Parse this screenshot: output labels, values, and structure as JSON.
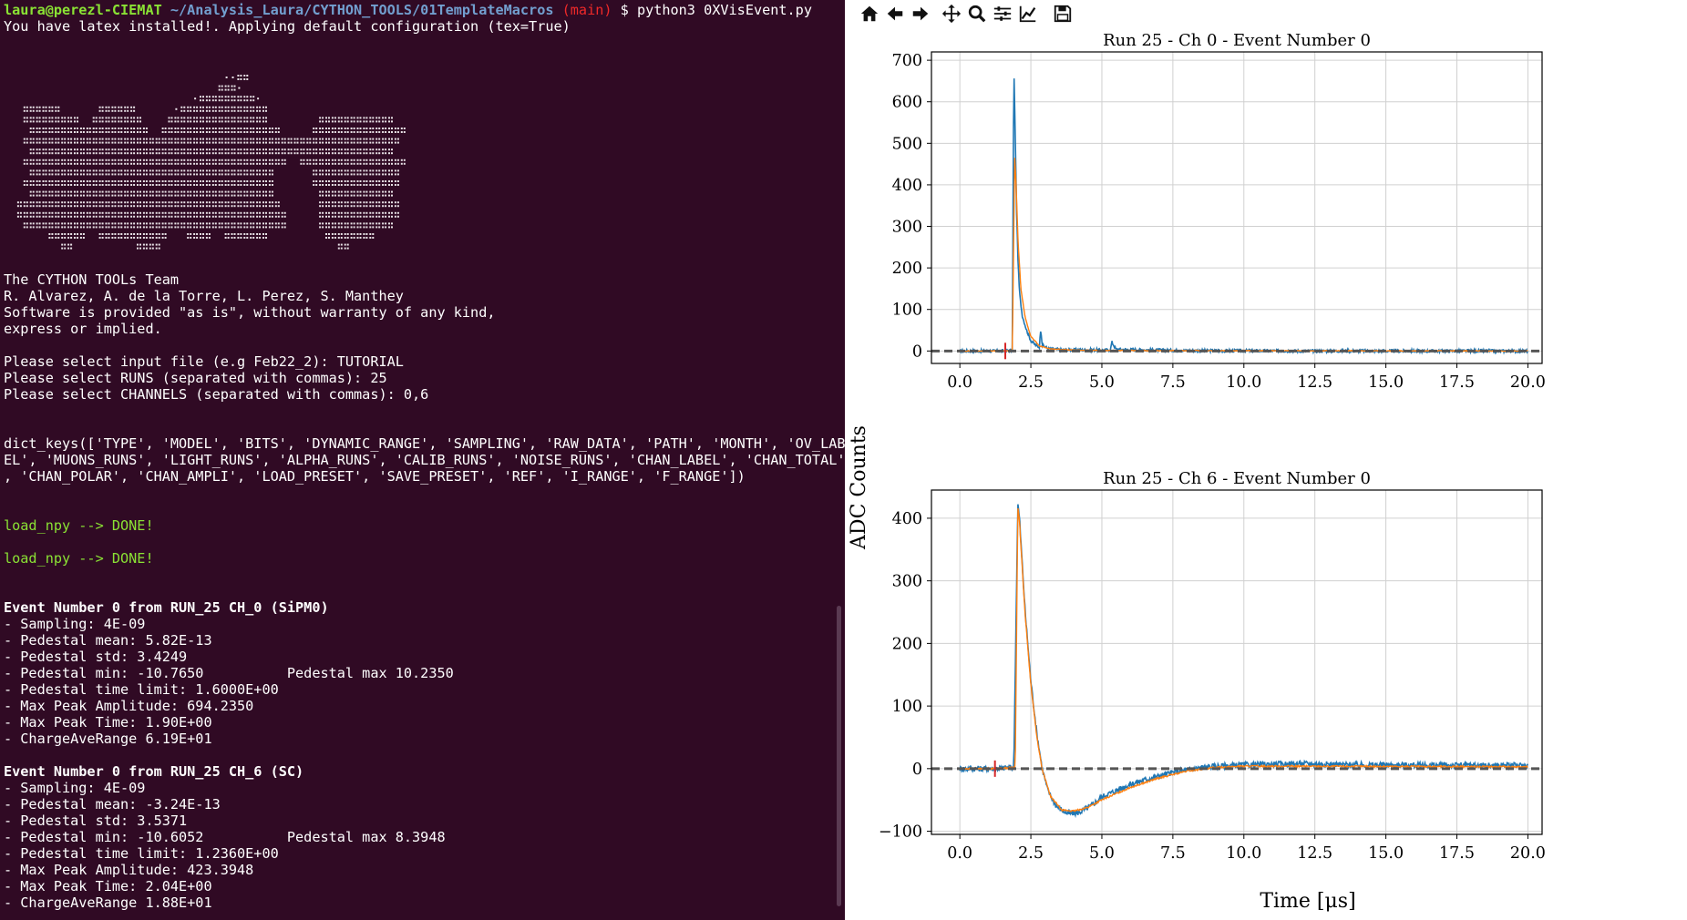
{
  "terminal": {
    "prompt": {
      "user": "laura@perezl-CIEMAT",
      "path": " ~/Analysis_Laura/CYTHON_TOOLS/01TemplateMacros",
      "branch": " (main)",
      "command": " $ python3 0XVisEvent.py"
    },
    "latex_msg": "You have latex installed!. Applying default configuration (tex=True)",
    "ascii_art": [
      "                                  ..::",
      "                                 :::'",
      "                             .:::::::::.",
      "  ::::::      ::::::      .::::::::::::::",
      "  :::::::::  ::::::::    ::::::::::::::::        ::::::::::::",
      "   :::::::::::::::::::  :::::::::::::::::::     :::::::::::::::",
      "  ::::::::::::::::::::::::::::::::::::::::::::::::::::::::::::",
      "   ::::::::::::::::::::::::::::::::::::::::::::::::::::::::::",
      "  ::::::::::::::::::::::::::::::::::::::::::  :::::::::::::::::",
      "   :::::::::::::::::::::::::::::::::::::::      ::::::::::::::",
      "  ::::::::::::::::::::::::::::::::::::::::      ::::::::::::::",
      "   :::::::::::::::::::::::::::::::::::::::       ::::::::::::",
      " ::::::::::::::::::::::::::::::::::::::::::      :::::::::::::",
      " :::::::::::::::::::::::::::::::::::::::::::     :::::::::::::",
      "  ::::::::::::::::::::::::::::::::::::::::::     ::::::::::::",
      "      ::::::  :::::::::::   ::::  :::::::         ::::::::",
      "        ::          ::::                            ::"
    ],
    "credits": [
      "The CYTHON TOOLs Team",
      "R. Alvarez, A. de la Torre, L. Perez, S. Manthey",
      "Software is provided \"as is\", without warranty of any kind,",
      "express or implied."
    ],
    "inputs": [
      "Please select input file (e.g Feb22_2): TUTORIAL",
      "Please select RUNS (separated with commas): 25",
      "Please select CHANNELS (separated with commas): 0,6"
    ],
    "dict_keys": [
      "dict_keys(['TYPE', 'MODEL', 'BITS', 'DYNAMIC_RANGE', 'SAMPLING', 'RAW_DATA', 'PATH', 'MONTH', 'OV_LAB",
      "EL', 'MUONS_RUNS', 'LIGHT_RUNS', 'ALPHA_RUNS', 'CALIB_RUNS', 'NOISE_RUNS', 'CHAN_LABEL', 'CHAN_TOTAL'",
      ", 'CHAN_POLAR', 'CHAN_AMPLI', 'LOAD_PRESET', 'SAVE_PRESET', 'REF', 'I_RANGE', 'F_RANGE'])"
    ],
    "load_msg": "load_npy --> DONE!",
    "events": [
      {
        "header": "Event Number 0 from RUN_25 CH_0 (SiPM0)",
        "lines": [
          "- Sampling: 4E-09",
          "- Pedestal mean: 5.82E-13",
          "- Pedestal std: 3.4249",
          "- Pedestal min: -10.7650          Pedestal max 10.2350",
          "- Pedestal time limit: 1.6000E+00",
          "- Max Peak Amplitude: 694.2350",
          "- Max Peak Time: 1.90E+00",
          "- ChargeAveRange 6.19E+01"
        ]
      },
      {
        "header": "Event Number 0 from RUN_25 CH_6 (SC)",
        "lines": [
          "- Sampling: 4E-09",
          "- Pedestal mean: -3.24E-13",
          "- Pedestal std: 3.5371",
          "- Pedestal min: -10.6052          Pedestal max 8.3948",
          "- Pedestal time limit: 1.2360E+00",
          "- Max Peak Amplitude: 423.3948",
          "- Max Peak Time: 2.04E+00",
          "- ChargeAveRange 1.88E+01"
        ]
      }
    ]
  },
  "toolbar": {
    "buttons": [
      "home-icon",
      "back-icon",
      "forward-icon",
      "pan-icon",
      "zoom-icon",
      "configure-subplots-icon",
      "edit-axis-icon",
      "save-icon"
    ]
  },
  "colors": {
    "raw": "#1f77b4",
    "smoothed": "#ff7f0e",
    "pedestal": "#555555",
    "marker": "#d62728",
    "terminal_bg": "#300a24"
  },
  "figure": {
    "ylabel": "ADC Counts",
    "xlabel": "Time [μs]"
  },
  "chart_data": [
    {
      "type": "line",
      "title": "Run 25 - Ch 0 - Event Number 0",
      "xlim": [
        -1.0,
        20.5
      ],
      "ylim": [
        -30,
        720
      ],
      "xticks": [
        "0.0",
        "2.5",
        "5.0",
        "7.5",
        "10.0",
        "12.5",
        "15.0",
        "17.5",
        "20.0"
      ],
      "yticks": [
        "0",
        "100",
        "200",
        "300",
        "400",
        "500",
        "600",
        "700"
      ],
      "grid": true,
      "pedestal_time_limit": 1.6,
      "series": [
        {
          "x": [
            0,
            1.6,
            1.85,
            1.9,
            1.95,
            2.0,
            2.05,
            2.1,
            2.2,
            2.35,
            2.5,
            2.7,
            2.8,
            2.85,
            2.9,
            3.1,
            3.5,
            5.3,
            5.35,
            5.5,
            8,
            12,
            20
          ],
          "y": [
            0,
            0,
            2,
            694,
            520,
            330,
            210,
            140,
            85,
            50,
            25,
            12,
            10,
            55,
            14,
            6,
            3,
            2,
            22,
            4,
            1,
            0,
            0
          ]
        },
        {
          "x": [
            0,
            1.6,
            1.85,
            1.93,
            1.98,
            2.05,
            2.15,
            2.3,
            2.5,
            2.8,
            3.2,
            4.0,
            6,
            20
          ],
          "y": [
            0,
            0,
            2,
            470,
            400,
            260,
            150,
            80,
            35,
            12,
            5,
            2,
            1,
            0
          ]
        }
      ]
    },
    {
      "type": "line",
      "title": "Run 25 - Ch 6 - Event Number 0",
      "xlim": [
        -1.0,
        20.5
      ],
      "ylim": [
        -105,
        445
      ],
      "xticks": [
        "0.0",
        "2.5",
        "5.0",
        "7.5",
        "10.0",
        "12.5",
        "15.0",
        "17.5",
        "20.0"
      ],
      "yticks": [
        "−100",
        "0",
        "100",
        "200",
        "300",
        "400"
      ],
      "grid": true,
      "pedestal_time_limit": 1.236,
      "series": [
        {
          "x": [
            0,
            1.2,
            1.9,
            2.0,
            2.04,
            2.1,
            2.3,
            2.5,
            2.7,
            2.9,
            3.1,
            3.4,
            3.8,
            4.2,
            4.6,
            5.0,
            5.5,
            6.0,
            6.5,
            7.0,
            7.5,
            8.0,
            8.5,
            9.0,
            10.0,
            12.0,
            14.0,
            20.0
          ],
          "y": [
            0,
            0,
            2,
            300,
            423,
            400,
            250,
            140,
            60,
            0,
            -35,
            -60,
            -72,
            -70,
            -60,
            -45,
            -35,
            -25,
            -18,
            -12,
            -6,
            -2,
            2,
            4,
            6,
            8,
            6,
            5
          ]
        },
        {
          "x": [
            0,
            1.2,
            1.95,
            2.04,
            2.1,
            2.3,
            2.5,
            2.7,
            2.9,
            3.2,
            3.6,
            4.0,
            4.5,
            5.0,
            6.0,
            7.0,
            8.0,
            9.0,
            10.0,
            20.0
          ],
          "y": [
            0,
            0,
            2,
            418,
            395,
            245,
            135,
            55,
            -2,
            -45,
            -66,
            -68,
            -62,
            -50,
            -30,
            -15,
            -4,
            2,
            4,
            3
          ]
        }
      ]
    }
  ]
}
